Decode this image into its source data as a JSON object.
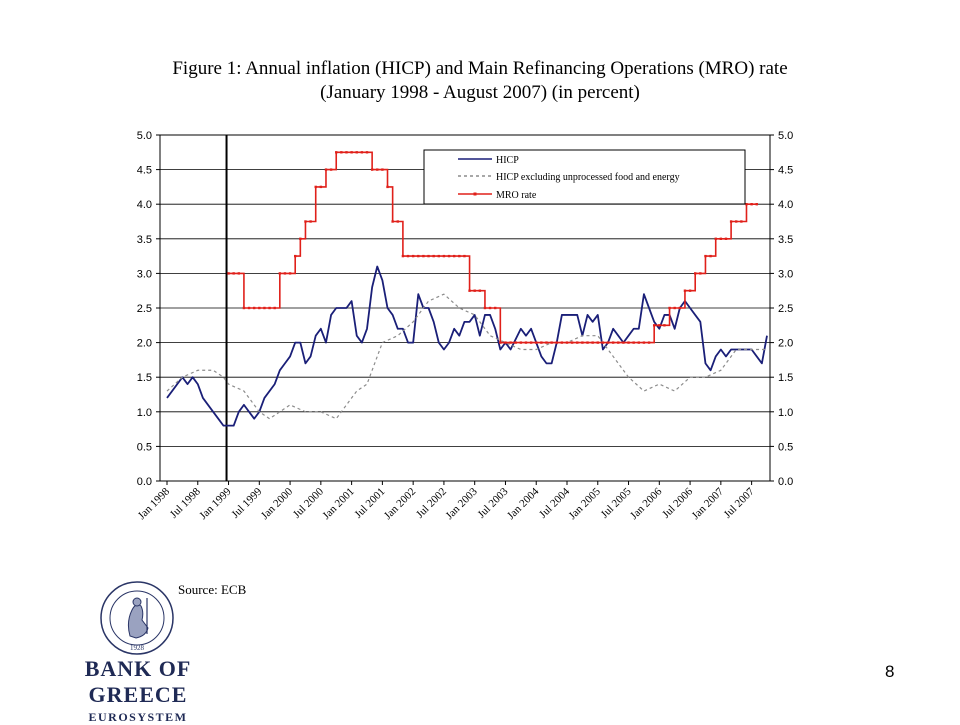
{
  "title_line1": "Figure 1: Annual inflation (HICP) and Main Refinancing Operations (MRO) rate",
  "title_line2": "(January 1998 - August 2007) (in percent)",
  "source": "Source: ECB",
  "page_number": "8",
  "bank": {
    "name": "BANK OF GREECE",
    "subtitle": "EUROSYSTEM",
    "seal_year": "1928"
  },
  "colors": {
    "hicp": "#1a1f78",
    "core": "#8c8c8c",
    "mro": "#e0201a"
  },
  "chart_data": {
    "type": "line",
    "ylim": [
      0,
      5
    ],
    "yticks": [
      "0.0",
      "0.5",
      "1.0",
      "1.5",
      "2.0",
      "2.5",
      "3.0",
      "3.5",
      "4.0",
      "4.5",
      "5.0"
    ],
    "xticks": [
      "Jan 1998",
      "Jul 1998",
      "Jan 1999",
      "Jul 1999",
      "Jan 2000",
      "Jul 2000",
      "Jan 2001",
      "Jul 2001",
      "Jan 2002",
      "Jul 2002",
      "Jan 2003",
      "Jul 2003",
      "Jan 2004",
      "Jul 2004",
      "Jan 2005",
      "Jul 2005",
      "Jan 2006",
      "Jul 2006",
      "Jan 2007",
      "Jul 2007"
    ],
    "x_start": "Jan 1998",
    "x_end": "Aug 2007",
    "grid": true,
    "legend_position": "top-right",
    "vertical_marker": "Jan 1999",
    "series": [
      {
        "name": "HICP",
        "style": "solid",
        "points": [
          [
            "Jan 1998",
            1.2
          ],
          [
            "Apr 1998",
            1.5
          ],
          [
            "May 1998",
            1.4
          ],
          [
            "Jun 1998",
            1.5
          ],
          [
            "Jul 1998",
            1.4
          ],
          [
            "Aug 1998",
            1.2
          ],
          [
            "Oct 1998",
            1.0
          ],
          [
            "Nov 1998",
            0.9
          ],
          [
            "Dec 1998",
            0.8
          ],
          [
            "Jan 1999",
            0.8
          ],
          [
            "Feb 1999",
            0.8
          ],
          [
            "Mar 1999",
            1.0
          ],
          [
            "Apr 1999",
            1.1
          ],
          [
            "Jun 1999",
            0.9
          ],
          [
            "Jul 1999",
            1.0
          ],
          [
            "Aug 1999",
            1.2
          ],
          [
            "Oct 1999",
            1.4
          ],
          [
            "Nov 1999",
            1.6
          ],
          [
            "Dec 1999",
            1.7
          ],
          [
            "Jan 2000",
            1.8
          ],
          [
            "Feb 2000",
            2.0
          ],
          [
            "Mar 2000",
            2.0
          ],
          [
            "Apr 2000",
            1.7
          ],
          [
            "May 2000",
            1.8
          ],
          [
            "Jun 2000",
            2.1
          ],
          [
            "Jul 2000",
            2.2
          ],
          [
            "Aug 2000",
            2.0
          ],
          [
            "Sep 2000",
            2.4
          ],
          [
            "Oct 2000",
            2.5
          ],
          [
            "Dec 2000",
            2.5
          ],
          [
            "Jan 2001",
            2.6
          ],
          [
            "Feb 2001",
            2.1
          ],
          [
            "Mar 2001",
            2.0
          ],
          [
            "Apr 2001",
            2.2
          ],
          [
            "May 2001",
            2.8
          ],
          [
            "Jun 2001",
            3.1
          ],
          [
            "Jul 2001",
            2.9
          ],
          [
            "Aug 2001",
            2.5
          ],
          [
            "Sep 2001",
            2.4
          ],
          [
            "Oct 2001",
            2.2
          ],
          [
            "Nov 2001",
            2.2
          ],
          [
            "Dec 2001",
            2.0
          ],
          [
            "Jan 2002",
            2.0
          ],
          [
            "Feb 2002",
            2.7
          ],
          [
            "Mar 2002",
            2.5
          ],
          [
            "Apr 2002",
            2.5
          ],
          [
            "May 2002",
            2.3
          ],
          [
            "Jun 2002",
            2.0
          ],
          [
            "Jul 2002",
            1.9
          ],
          [
            "Aug 2002",
            2.0
          ],
          [
            "Sep 2002",
            2.2
          ],
          [
            "Oct 2002",
            2.1
          ],
          [
            "Nov 2002",
            2.3
          ],
          [
            "Dec 2002",
            2.3
          ],
          [
            "Jan 2003",
            2.4
          ],
          [
            "Feb 2003",
            2.1
          ],
          [
            "Mar 2003",
            2.4
          ],
          [
            "Apr 2003",
            2.4
          ],
          [
            "May 2003",
            2.2
          ],
          [
            "Jun 2003",
            1.9
          ],
          [
            "Jul 2003",
            2.0
          ],
          [
            "Aug 2003",
            1.9
          ],
          [
            "Oct 2003",
            2.2
          ],
          [
            "Nov 2003",
            2.1
          ],
          [
            "Dec 2003",
            2.2
          ],
          [
            "Jan 2004",
            2.0
          ],
          [
            "Feb 2004",
            1.8
          ],
          [
            "Mar 2004",
            1.7
          ],
          [
            "Apr 2004",
            1.7
          ],
          [
            "May 2004",
            2.0
          ],
          [
            "Jun 2004",
            2.4
          ],
          [
            "Jul 2004",
            2.4
          ],
          [
            "Sep 2004",
            2.4
          ],
          [
            "Oct 2004",
            2.1
          ],
          [
            "Nov 2004",
            2.4
          ],
          [
            "Dec 2004",
            2.3
          ],
          [
            "Jan 2005",
            2.4
          ],
          [
            "Feb 2005",
            1.9
          ],
          [
            "Mar 2005",
            2.0
          ],
          [
            "Apr 2005",
            2.2
          ],
          [
            "May 2005",
            2.1
          ],
          [
            "Jun 2005",
            2.0
          ],
          [
            "Jul 2005",
            2.1
          ],
          [
            "Aug 2005",
            2.2
          ],
          [
            "Sep 2005",
            2.2
          ],
          [
            "Oct 2005",
            2.7
          ],
          [
            "Nov 2005",
            2.5
          ],
          [
            "Dec 2005",
            2.3
          ],
          [
            "Jan 2006",
            2.2
          ],
          [
            "Feb 2006",
            2.4
          ],
          [
            "Mar 2006",
            2.4
          ],
          [
            "Apr 2006",
            2.2
          ],
          [
            "May 2006",
            2.5
          ],
          [
            "Jun 2006",
            2.6
          ],
          [
            "Jul 2006",
            2.5
          ],
          [
            "Aug 2006",
            2.4
          ],
          [
            "Sep 2006",
            2.3
          ],
          [
            "Oct 2006",
            1.7
          ],
          [
            "Nov 2006",
            1.6
          ],
          [
            "Dec 2006",
            1.8
          ],
          [
            "Jan 2007",
            1.9
          ],
          [
            "Feb 2007",
            1.8
          ],
          [
            "Mar 2007",
            1.9
          ],
          [
            "Jul 2007",
            1.9
          ],
          [
            "Aug 2007",
            1.8
          ],
          [
            "Sep 2007",
            1.7
          ],
          [
            "Oct 2007",
            2.1
          ]
        ]
      },
      {
        "name": "HICP excluding unprocessed food and energy",
        "style": "dashed",
        "points": [
          [
            "Jan 1998",
            1.3
          ],
          [
            "Apr 1998",
            1.5
          ],
          [
            "Jul 1998",
            1.6
          ],
          [
            "Oct 1998",
            1.6
          ],
          [
            "Dec 1998",
            1.5
          ],
          [
            "Jan 1999",
            1.4
          ],
          [
            "Apr 1999",
            1.3
          ],
          [
            "Jul 1999",
            1.0
          ],
          [
            "Sep 1999",
            0.9
          ],
          [
            "Nov 1999",
            1.0
          ],
          [
            "Jan 2000",
            1.1
          ],
          [
            "Apr 2000",
            1.0
          ],
          [
            "Jul 2000",
            1.0
          ],
          [
            "Oct 2000",
            0.9
          ],
          [
            "Dec 2000",
            1.1
          ],
          [
            "Feb 2001",
            1.3
          ],
          [
            "Apr 2001",
            1.4
          ],
          [
            "Jul 2001",
            2.0
          ],
          [
            "Oct 2001",
            2.1
          ],
          [
            "Jan 2002",
            2.3
          ],
          [
            "Apr 2002",
            2.6
          ],
          [
            "Jul 2002",
            2.7
          ],
          [
            "Oct 2002",
            2.5
          ],
          [
            "Jan 2003",
            2.4
          ],
          [
            "Apr 2003",
            2.1
          ],
          [
            "Jul 2003",
            2.0
          ],
          [
            "Oct 2003",
            1.9
          ],
          [
            "Jan 2004",
            1.9
          ],
          [
            "Apr 2004",
            2.0
          ],
          [
            "Jul 2004",
            2.0
          ],
          [
            "Oct 2004",
            2.1
          ],
          [
            "Jan 2005",
            2.1
          ],
          [
            "Apr 2005",
            1.8
          ],
          [
            "Jul 2005",
            1.5
          ],
          [
            "Oct 2005",
            1.3
          ],
          [
            "Jan 2006",
            1.4
          ],
          [
            "Apr 2006",
            1.3
          ],
          [
            "Jul 2006",
            1.5
          ],
          [
            "Oct 2006",
            1.5
          ],
          [
            "Jan 2007",
            1.6
          ],
          [
            "Apr 2007",
            1.9
          ],
          [
            "Jul 2007",
            1.9
          ],
          [
            "Oct 2007",
            1.9
          ]
        ]
      },
      {
        "name": "MRO rate",
        "style": "step",
        "points": [
          [
            "Jan 1999",
            3.0
          ],
          [
            "Apr 1999",
            2.5
          ],
          [
            "Nov 1999",
            3.0
          ],
          [
            "Feb 2000",
            3.25
          ],
          [
            "Mar 2000",
            3.5
          ],
          [
            "Apr 2000",
            3.75
          ],
          [
            "Jun 2000",
            4.25
          ],
          [
            "Aug 2000",
            4.5
          ],
          [
            "Oct 2000",
            4.75
          ],
          [
            "May 2001",
            4.5
          ],
          [
            "Aug 2001",
            4.25
          ],
          [
            "Sep 2001",
            3.75
          ],
          [
            "Nov 2001",
            3.25
          ],
          [
            "Dec 2002",
            2.75
          ],
          [
            "Mar 2003",
            2.5
          ],
          [
            "Jun 2003",
            2.0
          ],
          [
            "Dec 2005",
            2.25
          ],
          [
            "Mar 2006",
            2.5
          ],
          [
            "Jun 2006",
            2.75
          ],
          [
            "Aug 2006",
            3.0
          ],
          [
            "Oct 2006",
            3.25
          ],
          [
            "Dec 2006",
            3.5
          ],
          [
            "Mar 2007",
            3.75
          ],
          [
            "Jun 2007",
            4.0
          ],
          [
            "Aug 2007",
            4.0
          ]
        ]
      }
    ]
  }
}
